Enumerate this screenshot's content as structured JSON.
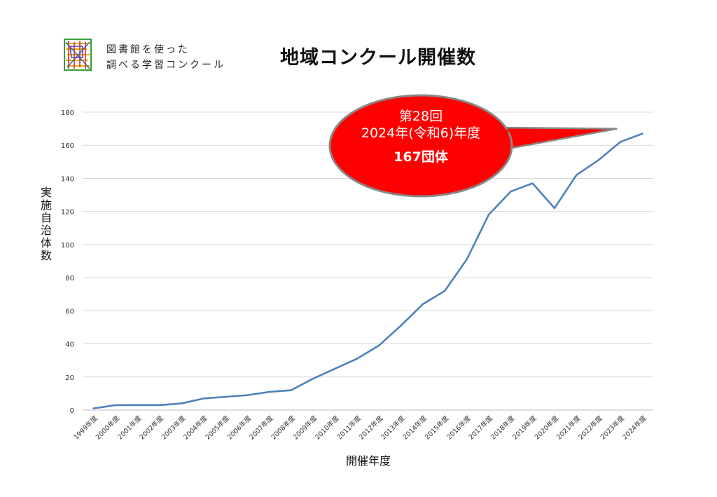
{
  "header": {
    "logo_icon": "library-logo-icon",
    "logo_line1": "図書館を使った",
    "logo_line2": "調べる学習コンクール",
    "title": "地域コンクール開催数"
  },
  "callout": {
    "line1": "第28回",
    "line2": "2024年(令和6)年度",
    "line3": "167団体",
    "fill_color": "#ff0000",
    "border_color": "#888888"
  },
  "chart_data": {
    "type": "line",
    "title": "地域コンクール開催数",
    "xlabel": "開催年度",
    "ylabel": "実施自治体数",
    "categories": [
      "1999年度",
      "2000年度",
      "2001年度",
      "2002年度",
      "2003年度",
      "2004年度",
      "2005年度",
      "2006年度",
      "2007年度",
      "2008年度",
      "2009年度",
      "2010年度",
      "2011年度",
      "2012年度",
      "2013年度",
      "2014年度",
      "2015年度",
      "2016年度",
      "2017年度",
      "2018年度",
      "2019年度",
      "2020年度",
      "2021年度",
      "2022年度",
      "2023年度",
      "2024年度"
    ],
    "series": [
      {
        "values": [
          1,
          3,
          3,
          3,
          4,
          7,
          8,
          9,
          11,
          12,
          19,
          25,
          31,
          39,
          51,
          64,
          72,
          91,
          118,
          132,
          137,
          122,
          142,
          151,
          162,
          167
        ],
        "color": "#4f81bd"
      }
    ],
    "ylim": [
      0,
      180
    ],
    "yticks": [
      "0",
      "20",
      "40",
      "60",
      "80",
      "100",
      "120",
      "140",
      "160",
      "180"
    ],
    "grid": true,
    "legend": "none"
  }
}
